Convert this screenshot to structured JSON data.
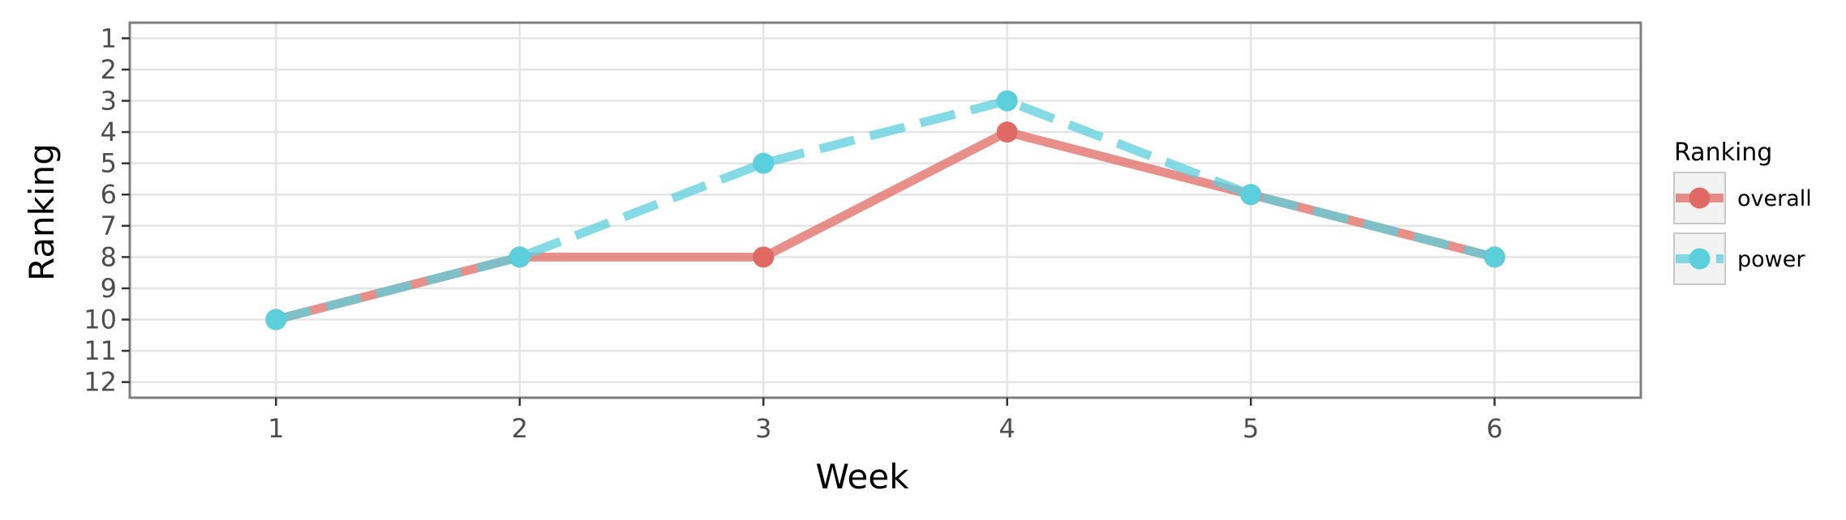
{
  "chart_data": {
    "type": "line",
    "xlabel": "Week",
    "ylabel": "Ranking",
    "x": [
      1,
      2,
      3,
      4,
      5,
      6
    ],
    "xlim": [
      0.4,
      6.6
    ],
    "ylim": [
      12.5,
      0.5
    ],
    "y_reversed": true,
    "x_ticks": [
      "1",
      "2",
      "3",
      "4",
      "5",
      "6"
    ],
    "y_ticks": [
      "1",
      "2",
      "3",
      "4",
      "5",
      "6",
      "7",
      "8",
      "9",
      "10",
      "11",
      "12"
    ],
    "grid": true,
    "legend": {
      "title": "Ranking",
      "position": "right"
    },
    "series": [
      {
        "name": "overall",
        "values": [
          10,
          8,
          8,
          4,
          6,
          8
        ],
        "color": "#E06A63",
        "line": "solid"
      },
      {
        "name": "power",
        "values": [
          10,
          8,
          5,
          3,
          6,
          8
        ],
        "color": "#5BCFDC",
        "line": "dashed"
      }
    ]
  }
}
